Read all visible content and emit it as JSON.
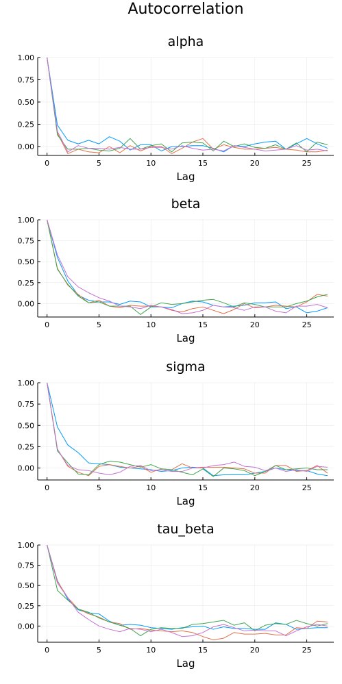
{
  "figure": {
    "title": "Autocorrelation"
  },
  "chart_data": [
    {
      "type": "line",
      "title": "alpha",
      "xlabel": "Lag",
      "ylabel": "",
      "xlim": [
        -0.9,
        27.6
      ],
      "ylim": [
        -0.1,
        1.0
      ],
      "xticks": [
        0,
        5,
        10,
        15,
        20,
        25
      ],
      "yticks": [
        0.0,
        0.25,
        0.5,
        0.75,
        1.0
      ],
      "xtick_labels": [
        "0",
        "5",
        "10",
        "15",
        "20",
        "25"
      ],
      "ytick_labels": [
        "0.00",
        "0.25",
        "0.50",
        "0.75",
        "1.00"
      ],
      "grid": true,
      "legend": "none",
      "x": [
        0,
        1,
        2,
        3,
        4,
        5,
        6,
        7,
        8,
        9,
        10,
        11,
        12,
        13,
        14,
        15,
        16,
        17,
        18,
        19,
        20,
        21,
        22,
        23,
        24,
        25,
        26,
        27
      ],
      "series": [
        {
          "color": "#009AFA",
          "values": [
            1.0,
            0.24,
            0.07,
            0.03,
            0.07,
            0.03,
            0.11,
            0.06,
            -0.04,
            0.02,
            0.02,
            -0.05,
            0.0,
            0.0,
            0.01,
            0.01,
            -0.02,
            -0.06,
            0.01,
            0.0,
            0.03,
            0.05,
            0.06,
            -0.03,
            0.03,
            0.09,
            0.03,
            -0.02
          ]
        },
        {
          "color": "#E36F47",
          "values": [
            1.0,
            0.15,
            -0.08,
            -0.03,
            -0.06,
            -0.07,
            0.0,
            -0.07,
            0.01,
            -0.05,
            0.0,
            0.0,
            -0.08,
            -0.02,
            0.05,
            0.09,
            -0.03,
            0.02,
            -0.01,
            -0.03,
            -0.03,
            -0.02,
            -0.01,
            -0.03,
            -0.04,
            -0.06,
            -0.06,
            -0.04
          ]
        },
        {
          "color": "#3EA44E",
          "values": [
            1.0,
            0.13,
            -0.03,
            -0.03,
            -0.02,
            -0.04,
            -0.05,
            -0.02,
            0.09,
            -0.03,
            0.01,
            0.03,
            -0.06,
            0.04,
            0.05,
            0.04,
            -0.05,
            0.06,
            0.0,
            0.03,
            -0.01,
            -0.02,
            0.02,
            -0.03,
            0.04,
            -0.06,
            0.05,
            0.02
          ]
        },
        {
          "color": "#C271D2",
          "values": [
            1.0,
            0.17,
            -0.06,
            0.01,
            -0.02,
            -0.02,
            -0.03,
            -0.01,
            -0.03,
            -0.03,
            -0.01,
            -0.01,
            -0.03,
            0.01,
            -0.02,
            -0.04,
            -0.03,
            -0.05,
            0.01,
            -0.01,
            -0.03,
            -0.05,
            -0.04,
            -0.03,
            0.01,
            -0.04,
            -0.03,
            -0.05
          ]
        }
      ]
    },
    {
      "type": "line",
      "title": "beta",
      "xlabel": "Lag",
      "ylabel": "",
      "xlim": [
        -0.9,
        27.6
      ],
      "ylim": [
        -0.16,
        1.0
      ],
      "xticks": [
        0,
        5,
        10,
        15,
        20,
        25
      ],
      "yticks": [
        0.0,
        0.25,
        0.5,
        0.75,
        1.0
      ],
      "xtick_labels": [
        "0",
        "5",
        "10",
        "15",
        "20",
        "25"
      ],
      "ytick_labels": [
        "0.00",
        "0.25",
        "0.50",
        "0.75",
        "1.00"
      ],
      "grid": true,
      "legend": "none",
      "x": [
        0,
        1,
        2,
        3,
        4,
        5,
        6,
        7,
        8,
        9,
        10,
        11,
        12,
        13,
        14,
        15,
        16,
        17,
        18,
        19,
        20,
        21,
        22,
        23,
        24,
        25,
        26,
        27
      ],
      "series": [
        {
          "color": "#009AFA",
          "values": [
            1.0,
            0.55,
            0.27,
            0.1,
            0.04,
            0.02,
            0.02,
            -0.01,
            0.03,
            0.02,
            -0.04,
            -0.04,
            -0.05,
            0.0,
            0.03,
            0.02,
            -0.02,
            -0.04,
            -0.03,
            -0.02,
            0.01,
            0.01,
            0.02,
            -0.06,
            -0.04,
            -0.11,
            -0.09,
            -0.05
          ]
        },
        {
          "color": "#E36F47",
          "values": [
            1.0,
            0.42,
            0.22,
            0.11,
            0.01,
            0.04,
            -0.03,
            -0.05,
            -0.02,
            -0.03,
            -0.03,
            -0.04,
            -0.08,
            -0.1,
            -0.06,
            -0.04,
            -0.08,
            -0.12,
            -0.07,
            0.0,
            -0.05,
            -0.04,
            -0.02,
            -0.03,
            -0.04,
            0.02,
            0.11,
            0.09
          ]
        },
        {
          "color": "#3EA44E",
          "values": [
            1.0,
            0.41,
            0.23,
            0.09,
            0.01,
            0.02,
            -0.03,
            -0.03,
            -0.03,
            -0.13,
            -0.04,
            0.01,
            -0.01,
            0.0,
            0.02,
            0.04,
            0.05,
            0.01,
            -0.04,
            0.01,
            -0.01,
            -0.04,
            -0.04,
            -0.04,
            0.0,
            0.03,
            0.08,
            0.11
          ]
        },
        {
          "color": "#C271D2",
          "values": [
            1.0,
            0.58,
            0.32,
            0.2,
            0.13,
            0.07,
            0.03,
            -0.03,
            -0.04,
            -0.06,
            -0.02,
            -0.04,
            -0.07,
            -0.12,
            -0.11,
            -0.08,
            -0.02,
            -0.04,
            -0.05,
            -0.08,
            -0.04,
            -0.04,
            -0.09,
            -0.11,
            -0.03,
            -0.03,
            -0.01,
            -0.05
          ]
        }
      ]
    },
    {
      "type": "line",
      "title": "sigma",
      "xlabel": "Lag",
      "ylabel": "",
      "xlim": [
        -0.9,
        27.6
      ],
      "ylim": [
        -0.14,
        1.0
      ],
      "xticks": [
        0,
        5,
        10,
        15,
        20,
        25
      ],
      "yticks": [
        0.0,
        0.25,
        0.5,
        0.75,
        1.0
      ],
      "xtick_labels": [
        "0",
        "5",
        "10",
        "15",
        "20",
        "25"
      ],
      "ytick_labels": [
        "0.00",
        "0.25",
        "0.50",
        "0.75",
        "1.00"
      ],
      "grid": true,
      "legend": "none",
      "x": [
        0,
        1,
        2,
        3,
        4,
        5,
        6,
        7,
        8,
        9,
        10,
        11,
        12,
        13,
        14,
        15,
        16,
        17,
        18,
        19,
        20,
        21,
        22,
        23,
        24,
        25,
        26,
        27
      ],
      "series": [
        {
          "color": "#009AFA",
          "values": [
            1.0,
            0.48,
            0.27,
            0.18,
            0.06,
            0.05,
            0.04,
            0.01,
            0.0,
            -0.01,
            -0.02,
            -0.04,
            -0.03,
            0.0,
            0.01,
            0.0,
            -0.09,
            -0.08,
            -0.08,
            -0.08,
            -0.06,
            -0.04,
            0.0,
            -0.02,
            -0.03,
            -0.03,
            -0.07,
            -0.09
          ]
        },
        {
          "color": "#E36F47",
          "values": [
            1.0,
            0.22,
            0.02,
            -0.05,
            -0.09,
            0.02,
            0.04,
            0.02,
            0.0,
            0.02,
            -0.05,
            -0.01,
            -0.02,
            0.05,
            0.0,
            0.01,
            0.01,
            0.01,
            0.0,
            -0.01,
            -0.06,
            -0.06,
            0.03,
            0.03,
            -0.04,
            -0.03,
            0.03,
            -0.06
          ]
        },
        {
          "color": "#3EA44E",
          "values": [
            1.0,
            0.2,
            0.06,
            -0.07,
            -0.08,
            0.04,
            0.08,
            0.07,
            0.04,
            0.01,
            0.04,
            -0.01,
            -0.02,
            -0.05,
            -0.08,
            -0.01,
            -0.1,
            0.0,
            -0.01,
            -0.03,
            -0.09,
            -0.04,
            0.03,
            -0.02,
            -0.01,
            0.0,
            -0.02,
            -0.02
          ]
        },
        {
          "color": "#C271D2",
          "values": [
            1.0,
            0.22,
            0.03,
            -0.02,
            -0.03,
            -0.06,
            -0.08,
            -0.05,
            0.02,
            0.03,
            -0.03,
            -0.02,
            -0.04,
            -0.04,
            0.0,
            0.0,
            0.03,
            0.04,
            0.07,
            0.02,
            0.01,
            -0.03,
            0.0,
            -0.04,
            -0.02,
            -0.04,
            0.02,
            0.01
          ]
        }
      ]
    },
    {
      "type": "line",
      "title": "tau_beta",
      "xlabel": "Lag",
      "ylabel": "",
      "xlim": [
        -0.9,
        27.6
      ],
      "ylim": [
        -0.2,
        1.0
      ],
      "xticks": [
        0,
        5,
        10,
        15,
        20,
        25
      ],
      "yticks": [
        0.0,
        0.25,
        0.5,
        0.75,
        1.0
      ],
      "xtick_labels": [
        "0",
        "5",
        "10",
        "15",
        "20",
        "25"
      ],
      "ytick_labels": [
        "0.00",
        "0.25",
        "0.50",
        "0.75",
        "1.00"
      ],
      "grid": true,
      "legend": "none",
      "x": [
        0,
        1,
        2,
        3,
        4,
        5,
        6,
        7,
        8,
        9,
        10,
        11,
        12,
        13,
        14,
        15,
        16,
        17,
        18,
        19,
        20,
        21,
        22,
        23,
        24,
        25,
        26,
        27
      ],
      "series": [
        {
          "color": "#009AFA",
          "values": [
            1.0,
            0.56,
            0.33,
            0.2,
            0.16,
            0.15,
            0.06,
            0.01,
            0.02,
            0.01,
            -0.02,
            -0.03,
            -0.04,
            -0.02,
            -0.01,
            0.0,
            -0.04,
            -0.01,
            -0.03,
            -0.03,
            -0.04,
            -0.04,
            0.04,
            0.02,
            -0.04,
            -0.03,
            -0.02,
            -0.02
          ]
        },
        {
          "color": "#E36F47",
          "values": [
            1.0,
            0.55,
            0.35,
            0.21,
            0.15,
            0.11,
            0.05,
            0.03,
            -0.04,
            -0.03,
            -0.05,
            -0.06,
            -0.07,
            -0.06,
            -0.08,
            -0.13,
            -0.17,
            -0.15,
            -0.08,
            -0.1,
            -0.1,
            -0.09,
            -0.11,
            -0.11,
            -0.02,
            -0.03,
            0.06,
            0.05
          ]
        },
        {
          "color": "#3EA44E",
          "values": [
            1.0,
            0.44,
            0.32,
            0.21,
            0.17,
            0.1,
            0.05,
            0.01,
            -0.03,
            -0.12,
            -0.04,
            -0.02,
            -0.03,
            -0.03,
            0.02,
            0.03,
            0.05,
            0.07,
            0.01,
            0.04,
            -0.06,
            0.01,
            0.03,
            0.02,
            0.07,
            0.03,
            0.0,
            0.03
          ]
        },
        {
          "color": "#C271D2",
          "values": [
            1.0,
            0.53,
            0.35,
            0.17,
            0.08,
            0.0,
            -0.04,
            -0.07,
            -0.03,
            -0.04,
            -0.07,
            -0.04,
            -0.08,
            -0.13,
            -0.12,
            -0.08,
            -0.01,
            0.02,
            -0.02,
            -0.06,
            -0.05,
            -0.06,
            -0.06,
            -0.12,
            -0.06,
            -0.01,
            0.02,
            0.0
          ]
        }
      ]
    }
  ]
}
